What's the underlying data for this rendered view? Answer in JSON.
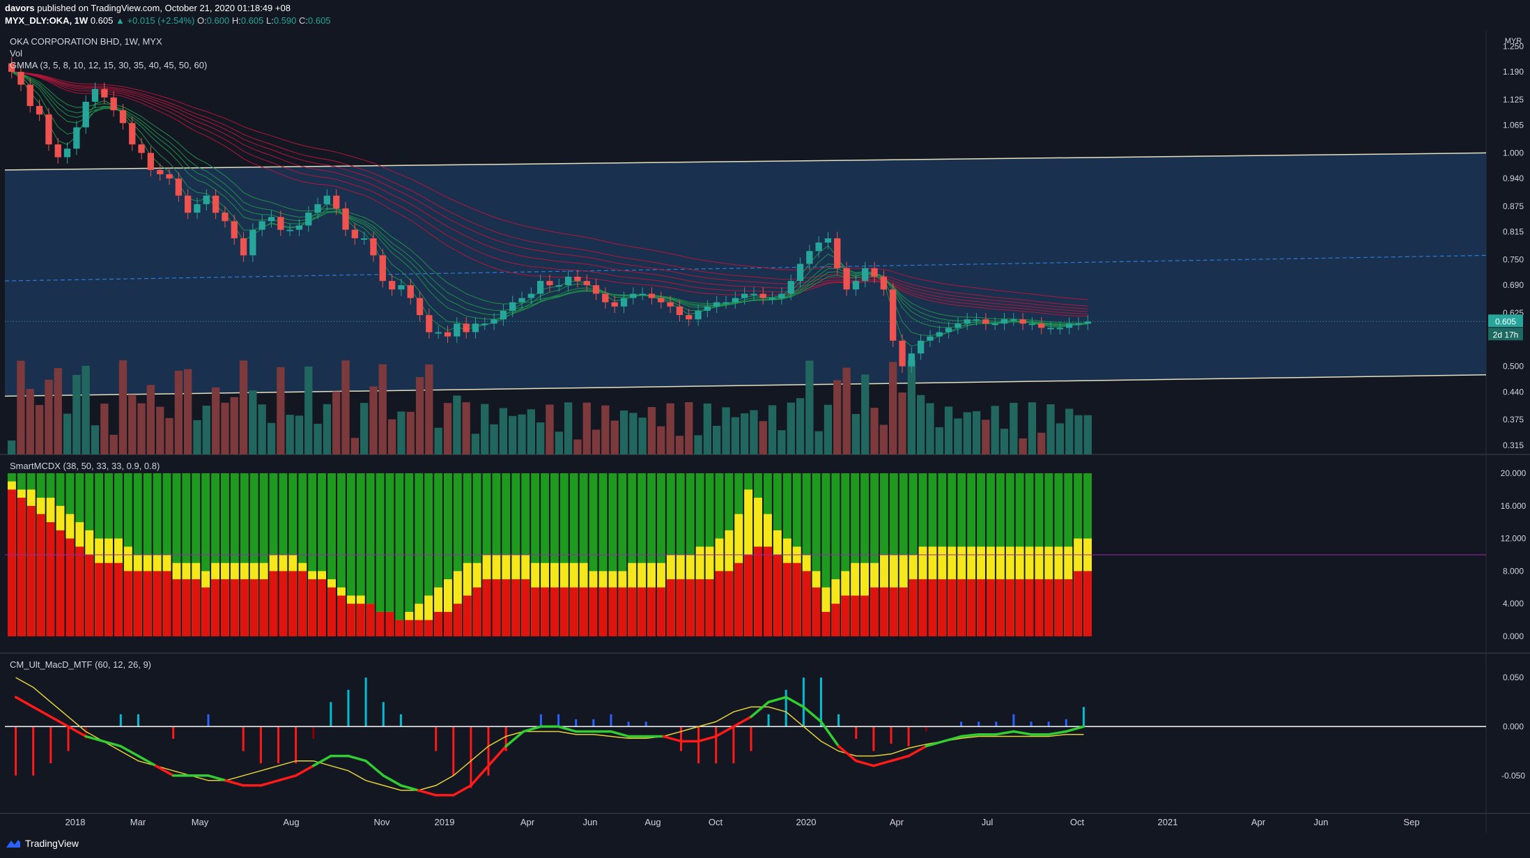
{
  "header": {
    "author": "davors",
    "published_text": "published on TradingView.com, October 21, 2020 01:18:49 +08",
    "symbol_line": "MYX_DLY:OKA, 1W",
    "price": "0.605",
    "change": "▲ +0.015 (+2.54%)",
    "o_label": "O:",
    "o_value": "0.600",
    "h_label": "H:",
    "h_value": "0.605",
    "l_label": "L:",
    "l_value": "0.590",
    "c_label": "C:",
    "c_value": "0.605"
  },
  "legends": {
    "main_title": "OKA CORPORATION BHD, 1W, MYX",
    "vol": "Vol",
    "gmma": "GMMA (3, 5, 8, 10, 12, 15, 30, 35, 40, 45, 50, 60)",
    "smartmcdx": "SmartMCDX (38, 50, 33, 33, 0.9, 0.8)",
    "macd": "CM_Ult_MacD_MTF (60, 12, 26, 9)"
  },
  "price_axis": {
    "currency": "MYR",
    "ticks": [
      "1.250",
      "1.190",
      "1.125",
      "1.065",
      "1.000",
      "0.940",
      "0.875",
      "0.815",
      "0.750",
      "0.690",
      "0.625",
      "0.500",
      "0.440",
      "0.375",
      "0.315"
    ],
    "current_price": "0.605",
    "countdown": "2d 17h"
  },
  "mcdx_axis": {
    "ticks": [
      "20.000",
      "16.000",
      "12.000",
      "8.000",
      "4.000",
      "0.000"
    ]
  },
  "macd_axis": {
    "ticks": [
      "0.050",
      "0.000",
      "-0.050"
    ]
  },
  "time_axis": {
    "labels": [
      "2018",
      "Mar",
      "May",
      "Aug",
      "Nov",
      "2019",
      "Apr",
      "Jun",
      "Aug",
      "Oct",
      "2020",
      "Apr",
      "Jul",
      "Oct",
      "2021",
      "Apr",
      "Jun",
      "Sep"
    ]
  },
  "colors": {
    "background": "#131722",
    "bull": "#26a69a",
    "bear": "#ef5350",
    "channel_fill": "#1c3a5e",
    "mcdx_green": "#1e9a1e",
    "mcdx_yellow": "#f5e71a",
    "mcdx_red": "#e0140f",
    "macd_fast_green": "#32cd32",
    "macd_fast_red": "#ff1a1a",
    "macd_signal": "#e6d23a"
  },
  "chart_data": {
    "type": "candlestick",
    "interval": "1W",
    "symbol": "OKA CORPORATION BHD",
    "x_range": [
      "2017-11",
      "2021-10"
    ],
    "y_range": [
      0.3,
      1.28
    ],
    "price_path": [
      1.19,
      1.16,
      1.11,
      1.09,
      1.02,
      0.99,
      1.01,
      1.06,
      1.12,
      1.15,
      1.13,
      1.1,
      1.07,
      1.02,
      1.0,
      0.96,
      0.95,
      0.94,
      0.9,
      0.86,
      0.88,
      0.9,
      0.86,
      0.84,
      0.8,
      0.76,
      0.82,
      0.84,
      0.85,
      0.82,
      0.82,
      0.83,
      0.86,
      0.88,
      0.9,
      0.87,
      0.82,
      0.8,
      0.8,
      0.76,
      0.7,
      0.68,
      0.69,
      0.66,
      0.62,
      0.58,
      0.58,
      0.57,
      0.6,
      0.58,
      0.6,
      0.6,
      0.61,
      0.63,
      0.65,
      0.66,
      0.67,
      0.7,
      0.69,
      0.69,
      0.71,
      0.7,
      0.69,
      0.67,
      0.65,
      0.64,
      0.66,
      0.67,
      0.67,
      0.66,
      0.65,
      0.64,
      0.62,
      0.61,
      0.63,
      0.64,
      0.65,
      0.65,
      0.66,
      0.67,
      0.67,
      0.66,
      0.66,
      0.67,
      0.7,
      0.74,
      0.77,
      0.79,
      0.8,
      0.73,
      0.68,
      0.7,
      0.73,
      0.71,
      0.68,
      0.56,
      0.5,
      0.53,
      0.56,
      0.57,
      0.58,
      0.59,
      0.6,
      0.61,
      0.61,
      0.6,
      0.6,
      0.61,
      0.61,
      0.6,
      0.6,
      0.59,
      0.59,
      0.59,
      0.6,
      0.6,
      0.605
    ],
    "channel": {
      "upper_start": 0.96,
      "upper_end": 1.0,
      "lower_start": 0.43,
      "lower_end": 0.48
    },
    "mcdx": {
      "ylim": [
        0,
        20
      ],
      "banker_red": [
        18,
        17,
        16,
        15,
        14,
        13,
        12,
        11,
        10,
        9,
        9,
        9,
        8,
        8,
        8,
        8,
        8,
        7,
        7,
        7,
        6,
        7,
        7,
        7,
        7,
        7,
        7,
        8,
        8,
        8,
        8,
        7,
        7,
        6,
        5,
        4,
        4,
        4,
        3,
        3,
        2,
        2,
        2,
        2,
        3,
        3,
        4,
        5,
        6,
        7,
        7,
        7,
        7,
        7,
        6,
        6,
        6,
        6,
        6,
        6,
        6,
        6,
        6,
        6,
        6,
        6,
        6,
        6,
        7,
        7,
        7,
        7,
        7,
        8,
        8,
        9,
        10,
        11,
        11,
        10,
        9,
        9,
        8,
        6,
        3,
        4,
        5,
        5,
        5,
        6,
        6,
        6,
        6,
        7,
        7,
        7,
        7,
        7,
        7,
        7,
        7,
        7,
        7,
        7,
        7,
        7,
        7,
        7,
        7,
        7,
        8,
        8
      ],
      "yellow_top": [
        19,
        18,
        18,
        17,
        17,
        16,
        15,
        14,
        13,
        12,
        12,
        12,
        11,
        10,
        10,
        10,
        10,
        9,
        9,
        9,
        8,
        9,
        9,
        9,
        9,
        9,
        9,
        10,
        10,
        10,
        9,
        8,
        8,
        7,
        6,
        5,
        5,
        4,
        3,
        3,
        2,
        3,
        4,
        5,
        6,
        7,
        8,
        9,
        9,
        10,
        10,
        10,
        10,
        10,
        9,
        9,
        9,
        9,
        9,
        9,
        8,
        8,
        8,
        8,
        9,
        9,
        9,
        9,
        10,
        10,
        10,
        11,
        11,
        12,
        13,
        15,
        18,
        17,
        15,
        13,
        12,
        11,
        10,
        8,
        6,
        7,
        8,
        9,
        9,
        9,
        10,
        10,
        10,
        10,
        11,
        11,
        11,
        11,
        11,
        11,
        11,
        11,
        11,
        11,
        11,
        11,
        11,
        11,
        11,
        11,
        12,
        12
      ]
    },
    "macd": {
      "ylim": [
        -0.08,
        0.06
      ],
      "fast": [
        0.03,
        0.02,
        0.01,
        0.0,
        -0.01,
        -0.015,
        -0.02,
        -0.03,
        -0.04,
        -0.05,
        -0.05,
        -0.05,
        -0.055,
        -0.06,
        -0.06,
        -0.055,
        -0.05,
        -0.04,
        -0.03,
        -0.03,
        -0.035,
        -0.05,
        -0.06,
        -0.065,
        -0.07,
        -0.07,
        -0.06,
        -0.04,
        -0.02,
        -0.005,
        0.0,
        0.0,
        -0.005,
        -0.005,
        -0.005,
        -0.01,
        -0.01,
        -0.01,
        -0.015,
        -0.015,
        -0.01,
        0.0,
        0.01,
        0.025,
        0.03,
        0.02,
        0.005,
        -0.02,
        -0.035,
        -0.04,
        -0.035,
        -0.03,
        -0.02,
        -0.015,
        -0.01,
        -0.008,
        -0.008,
        -0.005,
        -0.008,
        -0.008,
        -0.005,
        0.0
      ],
      "signal": [
        0.05,
        0.04,
        0.025,
        0.01,
        -0.005,
        -0.015,
        -0.025,
        -0.035,
        -0.04,
        -0.045,
        -0.05,
        -0.055,
        -0.055,
        -0.05,
        -0.045,
        -0.04,
        -0.035,
        -0.035,
        -0.04,
        -0.045,
        -0.055,
        -0.06,
        -0.065,
        -0.065,
        -0.06,
        -0.05,
        -0.035,
        -0.02,
        -0.01,
        -0.005,
        -0.005,
        -0.005,
        -0.008,
        -0.008,
        -0.01,
        -0.012,
        -0.012,
        -0.01,
        -0.005,
        0.0,
        0.005,
        0.015,
        0.02,
        0.02,
        0.015,
        0.0,
        -0.015,
        -0.025,
        -0.03,
        -0.03,
        -0.028,
        -0.022,
        -0.018,
        -0.015,
        -0.012,
        -0.01,
        -0.01,
        -0.01,
        -0.01,
        -0.01,
        -0.008,
        -0.008
      ]
    }
  }
}
